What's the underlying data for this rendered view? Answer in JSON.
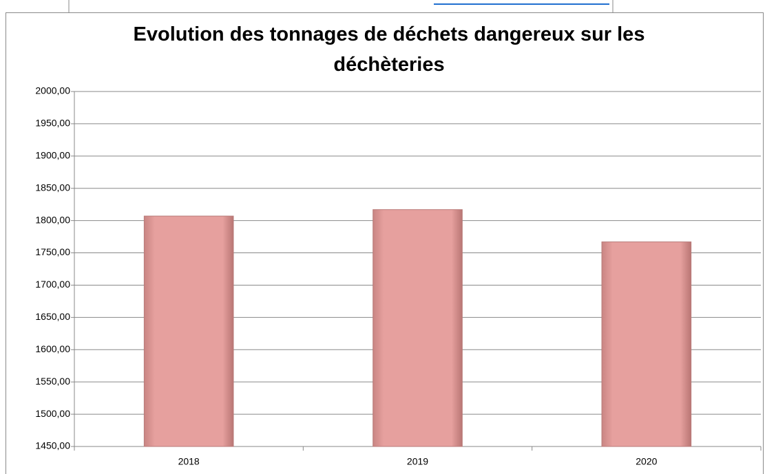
{
  "chart_data": {
    "type": "bar",
    "title": "Evolution des tonnages de déchets dangereux sur les déchèteries",
    "categories": [
      "2018",
      "2019",
      "2020"
    ],
    "values": [
      1807,
      1817,
      1767
    ],
    "color": "#e6a09e",
    "ylim": [
      1450,
      2000
    ],
    "yticks": [
      {
        "value": 1450,
        "label": "1450,00"
      },
      {
        "value": 1500,
        "label": "1500,00"
      },
      {
        "value": 1550,
        "label": "1550,00"
      },
      {
        "value": 1600,
        "label": "1600,00"
      },
      {
        "value": 1650,
        "label": "1650,00"
      },
      {
        "value": 1700,
        "label": "1700,00"
      },
      {
        "value": 1750,
        "label": "1750,00"
      },
      {
        "value": 1800,
        "label": "1800,00"
      },
      {
        "value": 1850,
        "label": "1850,00"
      },
      {
        "value": 1900,
        "label": "1900,00"
      },
      {
        "value": 1950,
        "label": "1950,00"
      },
      {
        "value": 2000,
        "label": "2000,00"
      }
    ],
    "grid": true
  }
}
